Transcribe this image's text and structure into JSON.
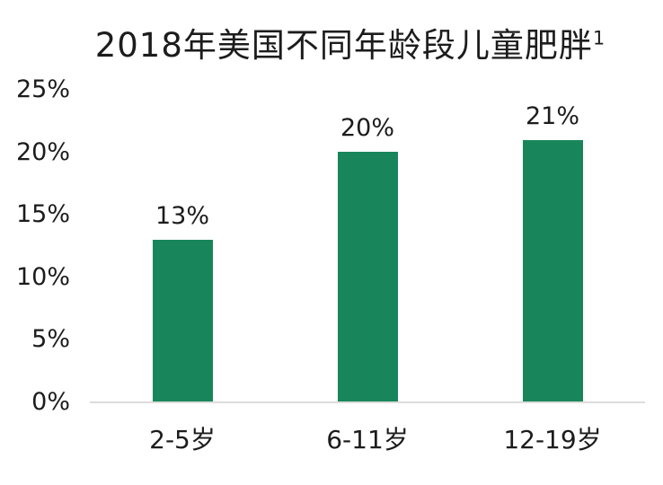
{
  "chart_data": {
    "type": "bar",
    "title": "2018年美国不同年龄段儿童肥胖",
    "title_superscript": "1",
    "categories": [
      "2-5岁",
      "6-11岁",
      "12-19岁"
    ],
    "values": [
      13,
      20,
      21
    ],
    "value_labels": [
      "13%",
      "20%",
      "21%"
    ],
    "xlabel": "",
    "ylabel": "",
    "ylim": [
      0,
      25
    ],
    "ytick_step": 5,
    "ytick_labels_top_to_bottom": [
      "25%",
      "20%",
      "15%",
      "10%",
      "5%",
      "0%"
    ],
    "grid": false,
    "legend": "none",
    "bar_color": "#18865a",
    "axis_line_color": "#dcdcdc",
    "text_color": "#1c1c1c",
    "background_color": "#ffffff"
  }
}
